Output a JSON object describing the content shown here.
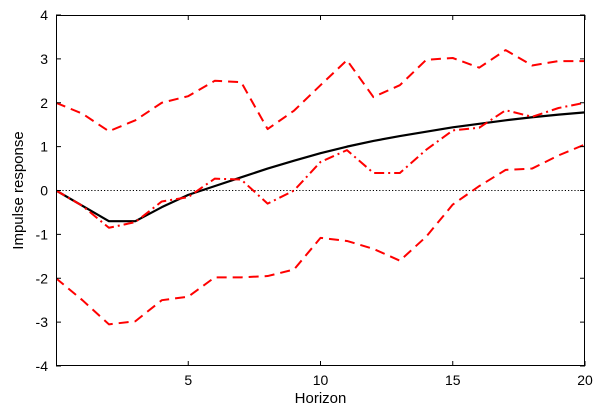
{
  "chart_data": {
    "type": "line",
    "title": "",
    "xlabel": "Horizon",
    "ylabel": "Impulse response",
    "xlim": [
      0,
      20
    ],
    "ylim": [
      -4,
      4
    ],
    "x_ticks": [
      5,
      10,
      15,
      20
    ],
    "x_tick_labels": [
      "5",
      "10",
      "15",
      "20"
    ],
    "y_ticks": [
      -4,
      -3,
      -2,
      -1,
      0,
      1,
      2,
      3,
      4
    ],
    "y_tick_labels": [
      "-4",
      "-3",
      "-2",
      "-1",
      "0",
      "1",
      "2",
      "3",
      "4"
    ],
    "grid": false,
    "legend": "none",
    "zero_line": {
      "y": 0,
      "style": "dotted",
      "color": "#000000"
    },
    "x": [
      0,
      1,
      2,
      3,
      4,
      5,
      6,
      7,
      8,
      9,
      10,
      11,
      12,
      13,
      14,
      15,
      16,
      17,
      18,
      19,
      20
    ],
    "series": [
      {
        "style": "solid",
        "color": "#000000",
        "values": [
          0,
          -0.35,
          -0.7,
          -0.7,
          -0.38,
          -0.1,
          0.1,
          0.3,
          0.5,
          0.68,
          0.85,
          1.0,
          1.13,
          1.24,
          1.34,
          1.44,
          1.52,
          1.6,
          1.67,
          1.73,
          1.78
        ],
        "note": "x grid for solid line"
      },
      {
        "style": "dash-dot",
        "color": "#ff0000",
        "values": [
          0,
          -0.35,
          -0.85,
          -0.72,
          -0.25,
          -0.15,
          0.27,
          0.25,
          -0.3,
          0.0,
          0.65,
          0.92,
          0.4,
          0.4,
          0.93,
          1.37,
          1.43,
          1.83,
          1.68,
          1.88,
          2.0
        ]
      },
      {
        "style": "dashed",
        "color": "#ff0000",
        "values": [
          2.0,
          1.75,
          1.35,
          1.6,
          2.0,
          2.15,
          2.5,
          2.47,
          1.4,
          1.82,
          2.4,
          2.97,
          2.13,
          2.4,
          2.98,
          3.02,
          2.8,
          3.2,
          2.85,
          2.95,
          2.95
        ]
      },
      {
        "style": "dashed",
        "color": "#ff0000",
        "values": [
          -2.0,
          -2.5,
          -3.05,
          -2.98,
          -2.5,
          -2.42,
          -1.98,
          -1.98,
          -1.95,
          -1.8,
          -1.08,
          -1.15,
          -1.33,
          -1.6,
          -1.05,
          -0.32,
          0.1,
          0.47,
          0.5,
          0.8,
          1.05
        ]
      }
    ]
  }
}
